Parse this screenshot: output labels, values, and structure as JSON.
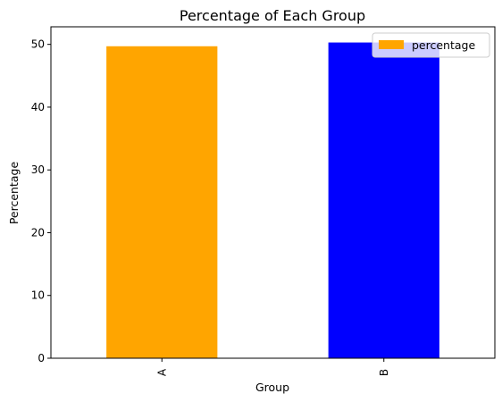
{
  "chart_data": {
    "type": "bar",
    "title": "Percentage of Each Group",
    "xlabel": "Group",
    "ylabel": "Percentage",
    "categories": [
      "A",
      "B"
    ],
    "series": [
      {
        "name": "percentage",
        "values": [
          49.7,
          50.3
        ]
      }
    ],
    "bar_colors": [
      "#FFA500",
      "#0000FF"
    ],
    "legend_color": "#FFA500",
    "ylim": [
      0,
      52.8
    ],
    "yticks": [
      0,
      10,
      20,
      30,
      40,
      50
    ],
    "grid": false,
    "legend_position": "top-right",
    "x_tick_rotation": "vertical"
  }
}
